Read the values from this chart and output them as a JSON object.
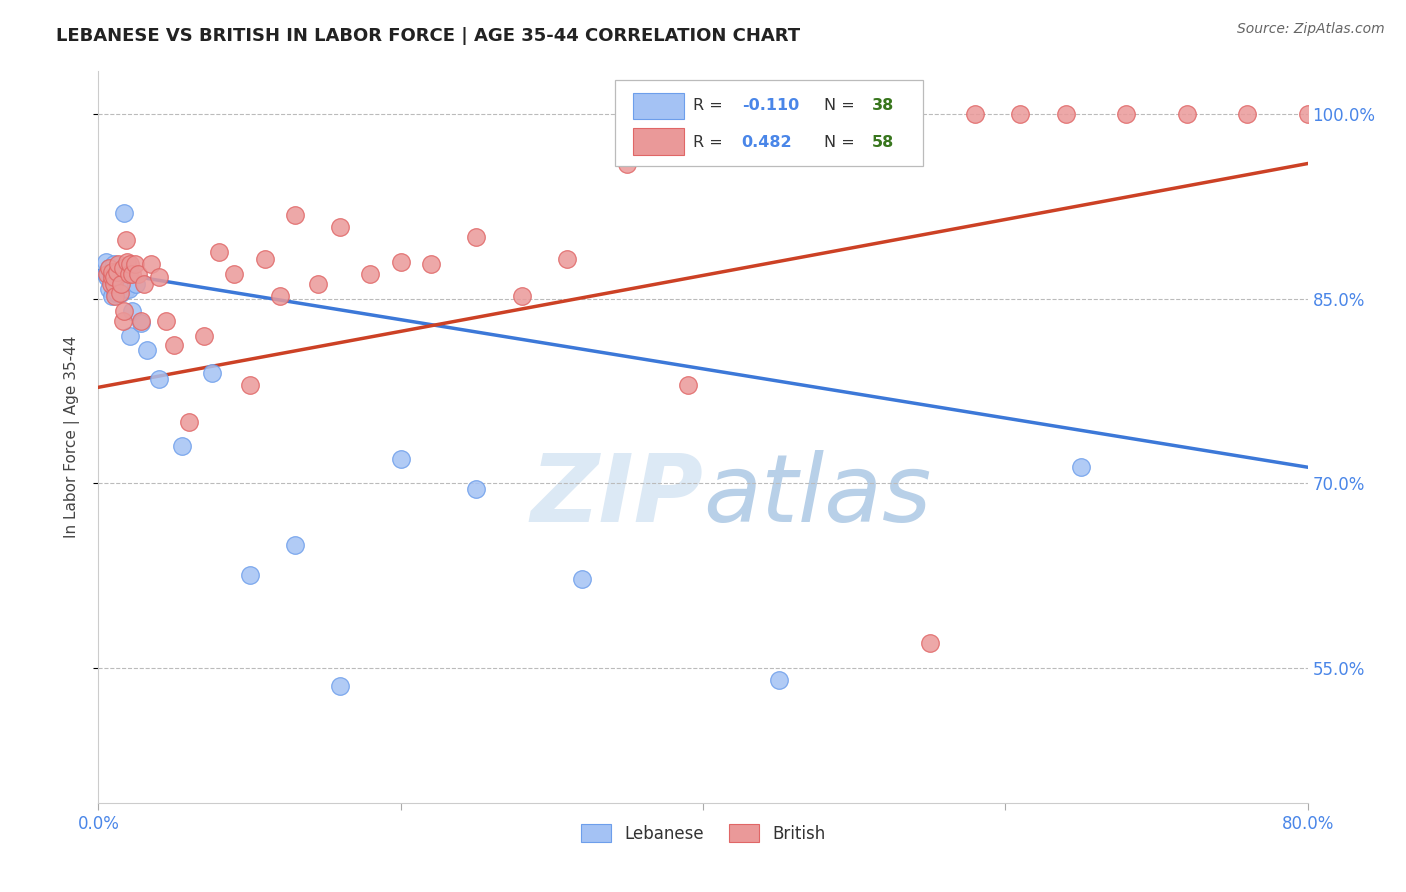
{
  "title": "LEBANESE VS BRITISH IN LABOR FORCE | AGE 35-44 CORRELATION CHART",
  "source": "Source: ZipAtlas.com",
  "ylabel": "In Labor Force | Age 35-44",
  "xlim": [
    0.0,
    0.8
  ],
  "ylim": [
    0.44,
    1.035
  ],
  "xticks": [
    0.0,
    0.2,
    0.4,
    0.6,
    0.8
  ],
  "xticklabels": [
    "0.0%",
    "",
    "",
    "",
    "80.0%"
  ],
  "ytick_positions": [
    0.55,
    0.7,
    0.85,
    1.0
  ],
  "ytick_labels": [
    "55.0%",
    "70.0%",
    "85.0%",
    "100.0%"
  ],
  "blue_color": "#a4c2f4",
  "blue_edge": "#6d9eeb",
  "pink_color": "#ea9999",
  "pink_edge": "#e06666",
  "blue_line_color": "#3c78d8",
  "pink_line_color": "#cc4125",
  "legend_r_color": "#4a86e8",
  "legend_n_color": "#38761d",
  "watermark_color": "#dce8f5",
  "blue_x": [
    0.005,
    0.005,
    0.006,
    0.007,
    0.007,
    0.008,
    0.009,
    0.009,
    0.01,
    0.01,
    0.01,
    0.011,
    0.011,
    0.012,
    0.012,
    0.013,
    0.014,
    0.015,
    0.016,
    0.017,
    0.018,
    0.02,
    0.021,
    0.022,
    0.025,
    0.028,
    0.032,
    0.04,
    0.055,
    0.075,
    0.1,
    0.13,
    0.16,
    0.2,
    0.25,
    0.32,
    0.45,
    0.65
  ],
  "blue_y": [
    0.87,
    0.88,
    0.868,
    0.875,
    0.858,
    0.87,
    0.865,
    0.852,
    0.862,
    0.87,
    0.878,
    0.865,
    0.855,
    0.862,
    0.855,
    0.87,
    0.86,
    0.855,
    0.862,
    0.92,
    0.858,
    0.858,
    0.82,
    0.84,
    0.862,
    0.83,
    0.808,
    0.785,
    0.73,
    0.79,
    0.625,
    0.65,
    0.535,
    0.72,
    0.695,
    0.622,
    0.54,
    0.713
  ],
  "pink_x": [
    0.006,
    0.007,
    0.008,
    0.009,
    0.009,
    0.01,
    0.01,
    0.011,
    0.012,
    0.013,
    0.014,
    0.015,
    0.016,
    0.016,
    0.017,
    0.018,
    0.019,
    0.02,
    0.021,
    0.022,
    0.024,
    0.026,
    0.028,
    0.03,
    0.035,
    0.04,
    0.045,
    0.05,
    0.06,
    0.07,
    0.08,
    0.09,
    0.1,
    0.11,
    0.12,
    0.13,
    0.145,
    0.16,
    0.18,
    0.2,
    0.22,
    0.25,
    0.28,
    0.31,
    0.35,
    0.39,
    0.42,
    0.45,
    0.49,
    0.52,
    0.55,
    0.58,
    0.61,
    0.64,
    0.68,
    0.72,
    0.76,
    0.8
  ],
  "pink_y": [
    0.87,
    0.875,
    0.862,
    0.868,
    0.872,
    0.862,
    0.868,
    0.852,
    0.872,
    0.878,
    0.855,
    0.862,
    0.875,
    0.832,
    0.84,
    0.898,
    0.88,
    0.87,
    0.878,
    0.87,
    0.878,
    0.87,
    0.832,
    0.862,
    0.878,
    0.868,
    0.832,
    0.812,
    0.75,
    0.82,
    0.888,
    0.87,
    0.78,
    0.882,
    0.852,
    0.918,
    0.862,
    0.908,
    0.87,
    0.88,
    0.878,
    0.9,
    0.852,
    0.882,
    0.96,
    0.78,
    1.0,
    1.0,
    0.99,
    1.0,
    0.57,
    1.0,
    1.0,
    1.0,
    1.0,
    1.0,
    1.0,
    1.0
  ]
}
